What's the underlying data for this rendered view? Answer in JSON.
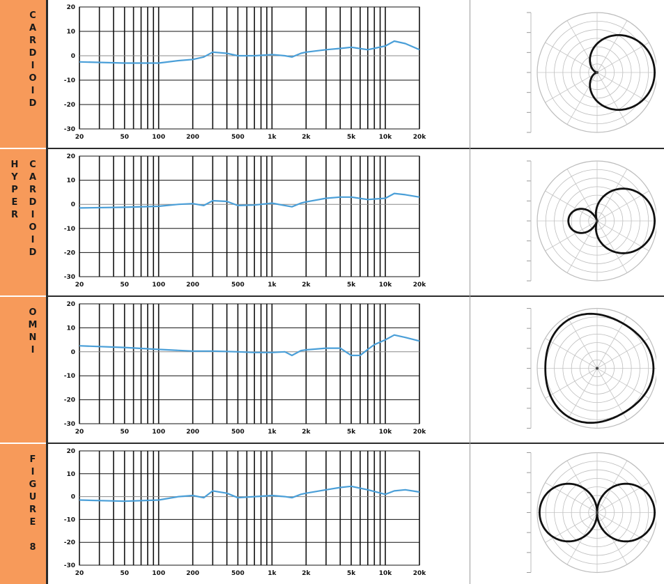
{
  "rows": [
    {
      "label_cols": [
        "CARDIOID"
      ]
    },
    {
      "label_cols": [
        "HYPER",
        "CARDIOID"
      ]
    },
    {
      "label_cols": [
        "OMNI"
      ]
    },
    {
      "label_cols": [
        "FIGURE 8"
      ]
    }
  ],
  "colors": {
    "label_bg": "#F79A5A",
    "response_line": "#4A9FD8",
    "grid": "#111111",
    "polar_pattern": "#111111"
  },
  "chart_data": [
    {
      "type": "line",
      "xscale": "log",
      "xlim": [
        20,
        20000
      ],
      "ylim": [
        -30,
        20
      ],
      "xticks": [
        "20",
        "50",
        "100",
        "200",
        "500",
        "1k",
        "2k",
        "5k",
        "10k",
        "20k"
      ],
      "yticks": [
        "20",
        "10",
        "0",
        "-10",
        "-20",
        "-30"
      ],
      "x": [
        20,
        50,
        100,
        150,
        200,
        250,
        300,
        400,
        500,
        700,
        1000,
        1300,
        1500,
        1800,
        2000,
        3000,
        4000,
        5000,
        7000,
        10000,
        12000,
        15000,
        20000
      ],
      "values": [
        -2.5,
        -3,
        -3,
        -2,
        -1.5,
        -0.5,
        1.5,
        1,
        0,
        0,
        0.5,
        0,
        -0.5,
        1,
        1.5,
        2.5,
        3,
        3.5,
        2.5,
        4,
        6,
        5,
        2.5
      ]
    },
    {
      "type": "line",
      "xscale": "log",
      "xlim": [
        20,
        20000
      ],
      "ylim": [
        -30,
        20
      ],
      "xticks": [
        "20",
        "50",
        "100",
        "200",
        "500",
        "1k",
        "2k",
        "5k",
        "10k",
        "20k"
      ],
      "yticks": [
        "20",
        "10",
        "0",
        "-10",
        "-20",
        "-30"
      ],
      "x": [
        20,
        50,
        100,
        150,
        200,
        250,
        300,
        400,
        500,
        700,
        1000,
        1300,
        1500,
        1800,
        2000,
        3000,
        4000,
        5000,
        7000,
        10000,
        12000,
        15000,
        20000
      ],
      "values": [
        -1.5,
        -1.2,
        -0.8,
        0,
        0.3,
        -0.5,
        1.5,
        1.2,
        -0.5,
        -0.3,
        0.5,
        -0.5,
        -1,
        0.5,
        1,
        2.5,
        3,
        3,
        2,
        2.5,
        4.5,
        4,
        3
      ]
    },
    {
      "type": "line",
      "xscale": "log",
      "xlim": [
        20,
        20000
      ],
      "ylim": [
        -30,
        20
      ],
      "xticks": [
        "20",
        "50",
        "100",
        "200",
        "500",
        "1k",
        "2k",
        "5k",
        "10k",
        "20k"
      ],
      "yticks": [
        "20",
        "10",
        "0",
        "-10",
        "-20",
        "-30"
      ],
      "x": [
        20,
        50,
        100,
        200,
        300,
        500,
        700,
        1000,
        1300,
        1500,
        1800,
        2000,
        3000,
        4000,
        5000,
        6000,
        7000,
        8000,
        10000,
        12000,
        15000,
        20000
      ],
      "values": [
        2.5,
        1.8,
        1,
        0.3,
        0.3,
        0,
        -0.3,
        -0.3,
        0,
        -1.5,
        0.5,
        0.8,
        1.5,
        1.5,
        -1.5,
        -1.5,
        1,
        3,
        5,
        7,
        6,
        4.5
      ]
    },
    {
      "type": "line",
      "xscale": "log",
      "xlim": [
        20,
        20000
      ],
      "ylim": [
        -30,
        20
      ],
      "xticks": [
        "20",
        "50",
        "100",
        "200",
        "500",
        "1k",
        "2k",
        "5k",
        "10k",
        "20k"
      ],
      "yticks": [
        "20",
        "10",
        "0",
        "-10",
        "-20",
        "-30"
      ],
      "x": [
        20,
        50,
        100,
        150,
        200,
        250,
        300,
        400,
        500,
        700,
        1000,
        1300,
        1500,
        1800,
        2000,
        3000,
        4000,
        5000,
        7000,
        10000,
        12000,
        15000,
        20000
      ],
      "values": [
        -1.5,
        -2,
        -1.5,
        0,
        0.5,
        -0.5,
        2.5,
        1.5,
        -0.5,
        0,
        0.5,
        0,
        -0.5,
        1,
        1.5,
        3,
        4,
        4.5,
        3,
        1,
        2.5,
        3,
        2
      ]
    }
  ],
  "polar_patterns": [
    {
      "pattern": "cardioid",
      "a": 0.5
    },
    {
      "pattern": "hypercardioid",
      "a": 0.25
    },
    {
      "pattern": "omni",
      "a": 1.0
    },
    {
      "pattern": "figure-8",
      "a": 0.0
    }
  ]
}
